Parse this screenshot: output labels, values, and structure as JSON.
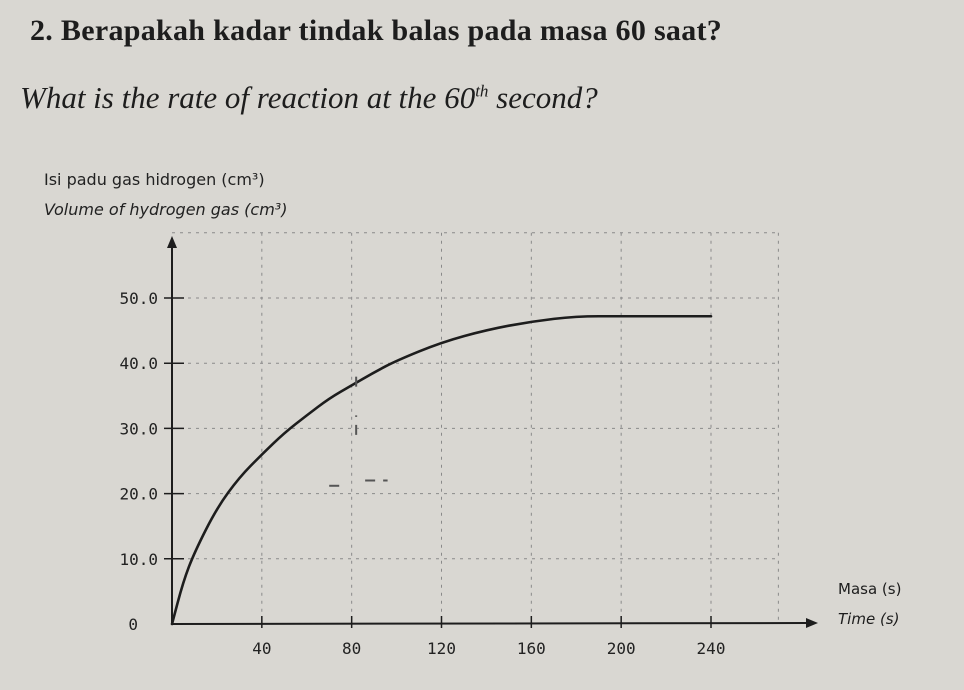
{
  "question": {
    "malay": "2. Berapakah kadar tindak balas pada masa 60 saat?",
    "english_prefix": "What is the rate of reaction at the ",
    "english_number": "60",
    "english_superscript": "th",
    "english_suffix": " second?"
  },
  "chart_data": {
    "type": "line",
    "ylabel_ms": "Isi padu gas hidrogen (cm³)",
    "ylabel_en": "Volume of hydrogen gas (cm³)",
    "xlabel_ms": "Masa (s)",
    "xlabel_en": "Time (s)",
    "xlim": [
      0,
      270
    ],
    "ylim": [
      0,
      60
    ],
    "x_ticks": [
      40,
      80,
      120,
      160,
      200,
      240
    ],
    "y_ticks": [
      0,
      10,
      20,
      30,
      40,
      50
    ],
    "y_tick_labels": [
      "0",
      "10.0",
      "20.0",
      "30.0",
      "40.0",
      "50.0"
    ],
    "grid": true,
    "series": [
      {
        "x": [
          0,
          5,
          10,
          20,
          30,
          40,
          50,
          60,
          70,
          80,
          90,
          100,
          120,
          140,
          160,
          180,
          200,
          220,
          240
        ],
        "y": [
          0,
          6.5,
          11,
          17.8,
          22.5,
          26.0,
          29.3,
          32.0,
          34.6,
          36.6,
          38.6,
          40.4,
          43.2,
          45.1,
          46.4,
          47.2,
          47.2,
          47.2,
          47.2
        ]
      }
    ],
    "annotations": {
      "tangent_dashes": [
        {
          "x1": 70,
          "y1": 21.2,
          "x2": 76,
          "y2": 21.2
        },
        {
          "x1": 86,
          "y1": 22,
          "x2": 96,
          "y2": 22
        },
        {
          "x1": 82,
          "y1": 36.4,
          "x2": 82,
          "y2": 38.6
        },
        {
          "x1": 82,
          "y1": 29,
          "x2": 82,
          "y2": 32
        }
      ]
    }
  }
}
